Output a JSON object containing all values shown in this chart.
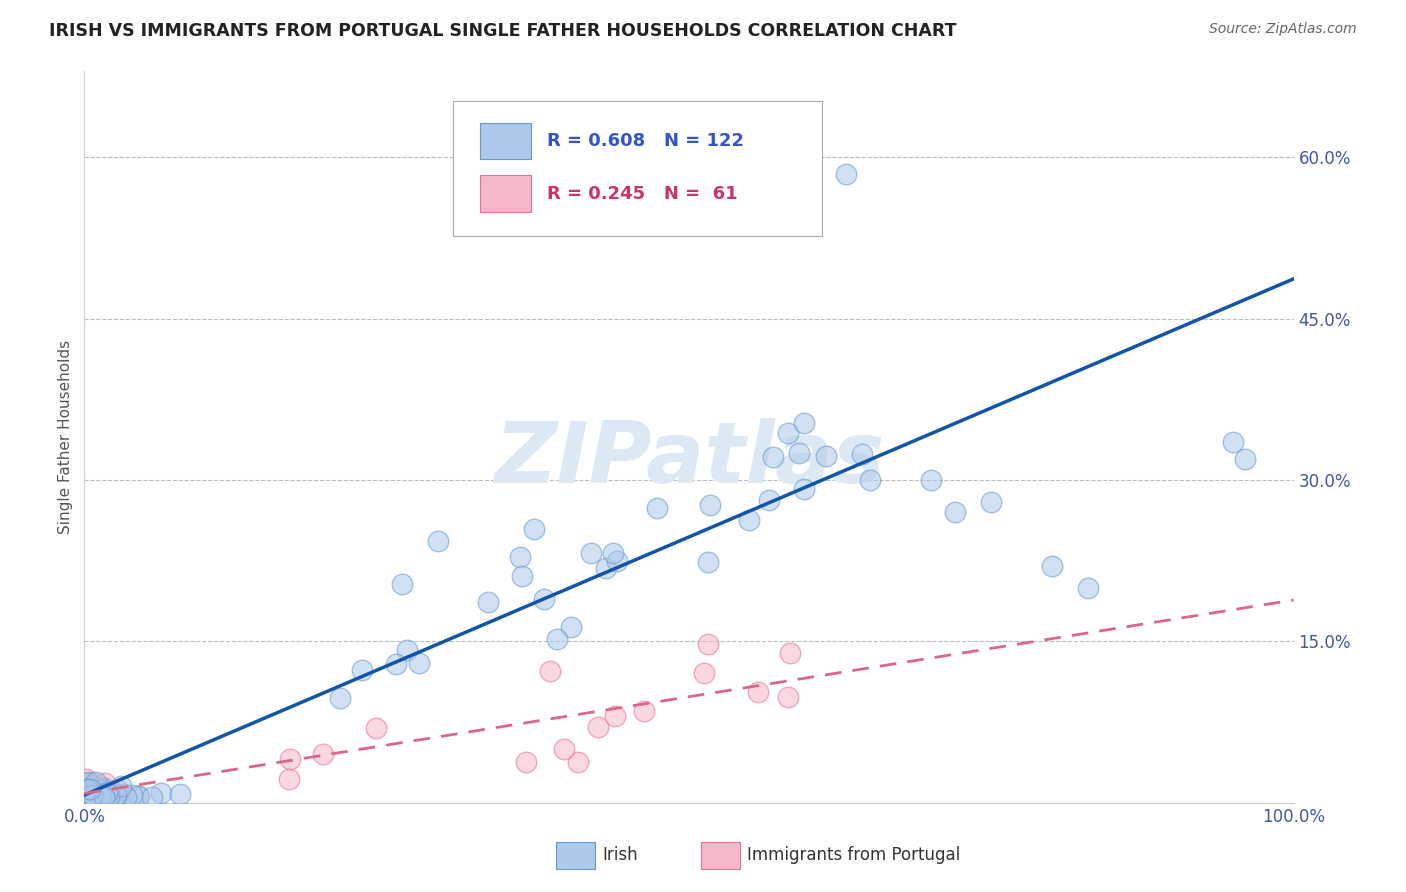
{
  "title": "IRISH VS IMMIGRANTS FROM PORTUGAL SINGLE FATHER HOUSEHOLDS CORRELATION CHART",
  "source": "Source: ZipAtlas.com",
  "ylabel": "Single Father Households",
  "xlim": [
    0,
    1.0
  ],
  "ylim": [
    0,
    0.68
  ],
  "irish_color": "#adc8ea",
  "irish_edge_color": "#6699cc",
  "portugal_color": "#f5b8c8",
  "portugal_edge_color": "#e87090",
  "irish_line_color": "#1155aa",
  "portugal_line_color": "#dd6688",
  "background_color": "#ffffff",
  "title_color": "#222222",
  "source_color": "#666666",
  "watermark_color": "#dde8f5",
  "grid_color": "#cccccc",
  "tick_color": "#4455aa",
  "ylabel_color": "#555555",
  "legend_text_irish_color": "#3355cc",
  "legend_text_port_color": "#cc3366"
}
